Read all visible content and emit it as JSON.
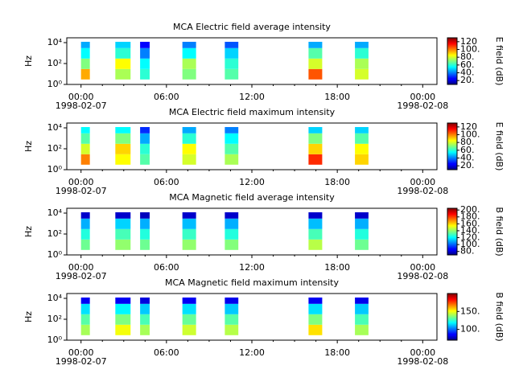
{
  "chart_data": [
    {
      "type": "heatmap",
      "title": "MCA  Electric field average intensity",
      "ylabel": "Hz",
      "colorbar_label": "E field (dB)",
      "yscale": "log",
      "ylim": [
        1,
        29000
      ],
      "yticks": [
        {
          "value": 1,
          "label": "10⁰"
        },
        {
          "value": 100,
          "label": "10²"
        },
        {
          "value": 10000,
          "label": "10⁴"
        }
      ],
      "xlim": [
        -1,
        25
      ],
      "xticks": [
        {
          "value": 0,
          "label": "00:00"
        },
        {
          "value": 6,
          "label": "06:00"
        },
        {
          "value": 12,
          "label": "12:00"
        },
        {
          "value": 18,
          "label": "18:00"
        },
        {
          "value": 24,
          "label": "00:00"
        }
      ],
      "xminorticks": [
        1.5,
        3,
        4.5,
        7.5,
        9,
        10.5,
        13.5,
        15,
        16.5,
        19.5,
        21,
        22.5
      ],
      "xdate_labels": [
        {
          "value": 0,
          "label": "1998-02-07"
        },
        {
          "value": 24,
          "label": "1998-02-08"
        }
      ],
      "clim": [
        10,
        130
      ],
      "cticks": [
        {
          "value": 20,
          "label": "20."
        },
        {
          "value": 40,
          "label": "40."
        },
        {
          "value": 60,
          "label": "60."
        },
        {
          "value": 80,
          "label": "80."
        },
        {
          "value": 100,
          "label": "100."
        },
        120
      ],
      "y_edges": [
        3,
        30,
        300,
        3000,
        12000
      ],
      "intervals": [
        [
          0,
          0.62
        ],
        [
          2.41,
          3.48
        ],
        [
          4.15,
          4.82
        ],
        [
          7.12,
          8.08
        ],
        [
          10.1,
          11.05
        ],
        [
          15.98,
          16.94
        ],
        [
          19.24,
          20.19
        ]
      ],
      "values": [
        [
          95,
          70,
          55,
          45
        ],
        [
          75,
          85,
          60,
          50
        ],
        [
          60,
          55,
          40,
          25
        ],
        [
          70,
          75,
          55,
          40
        ],
        [
          65,
          60,
          50,
          35
        ],
        [
          105,
          80,
          65,
          45
        ],
        [
          80,
          75,
          60,
          45
        ]
      ]
    },
    {
      "type": "heatmap",
      "title": "MCA  Electric field maximum intensity",
      "ylabel": "Hz",
      "colorbar_label": "E field (dB)",
      "yscale": "log",
      "ylim": [
        1,
        29000
      ],
      "yticks": [
        {
          "value": 1,
          "label": "10⁰"
        },
        {
          "value": 100,
          "label": "10²"
        },
        {
          "value": 10000,
          "label": "10⁴"
        }
      ],
      "xlim": [
        -1,
        25
      ],
      "xticks": [
        {
          "value": 0,
          "label": "00:00"
        },
        {
          "value": 6,
          "label": "06:00"
        },
        {
          "value": 12,
          "label": "12:00"
        },
        {
          "value": 18,
          "label": "18:00"
        },
        {
          "value": 24,
          "label": "00:00"
        }
      ],
      "xminorticks": [
        1.5,
        3,
        4.5,
        7.5,
        9,
        10.5,
        13.5,
        15,
        16.5,
        19.5,
        21,
        22.5
      ],
      "xdate_labels": [
        {
          "value": 0,
          "label": "1998-02-07"
        },
        {
          "value": 24,
          "label": "1998-02-08"
        }
      ],
      "clim": [
        10,
        130
      ],
      "cticks": [
        {
          "value": 20,
          "label": "20."
        },
        {
          "value": 40,
          "label": "40."
        },
        {
          "value": 60,
          "label": "60."
        },
        {
          "value": 80,
          "label": "80."
        },
        {
          "value": 100,
          "label": "100."
        },
        120
      ],
      "y_edges": [
        3,
        30,
        300,
        3000,
        12000
      ],
      "intervals": [
        [
          0,
          0.62
        ],
        [
          2.41,
          3.48
        ],
        [
          4.15,
          4.82
        ],
        [
          7.12,
          8.08
        ],
        [
          10.1,
          11.05
        ],
        [
          15.98,
          16.94
        ],
        [
          19.24,
          20.19
        ]
      ],
      "values": [
        [
          100,
          80,
          65,
          55
        ],
        [
          85,
          90,
          70,
          55
        ],
        [
          65,
          60,
          45,
          30
        ],
        [
          80,
          85,
          60,
          45
        ],
        [
          75,
          65,
          55,
          40
        ],
        [
          110,
          90,
          70,
          50
        ],
        [
          90,
          85,
          65,
          50
        ]
      ]
    },
    {
      "type": "heatmap",
      "title": "MCA  Magnetic field average intensity",
      "ylabel": "Hz",
      "colorbar_label": "B field (dB)",
      "yscale": "log",
      "ylim": [
        1,
        29000
      ],
      "yticks": [
        {
          "value": 1,
          "label": "10⁰"
        },
        {
          "value": 100,
          "label": "10²"
        },
        {
          "value": 10000,
          "label": "10⁴"
        }
      ],
      "xlim": [
        -1,
        25
      ],
      "xticks": [
        {
          "value": 0,
          "label": "00:00"
        },
        {
          "value": 6,
          "label": "06:00"
        },
        {
          "value": 12,
          "label": "12:00"
        },
        {
          "value": 18,
          "label": "18:00"
        },
        {
          "value": 24,
          "label": "00:00"
        }
      ],
      "xminorticks": [
        1.5,
        3,
        4.5,
        7.5,
        9,
        10.5,
        13.5,
        15,
        16.5,
        19.5,
        21,
        22.5
      ],
      "xdate_labels": [
        {
          "value": 0,
          "label": "1998-02-07"
        },
        {
          "value": 24,
          "label": "1998-02-08"
        }
      ],
      "clim": [
        70,
        205
      ],
      "cticks": [
        {
          "value": 80,
          "label": "80."
        },
        {
          "value": 100,
          "label": "100."
        },
        {
          "value": 120,
          "label": "120."
        },
        {
          "value": 140,
          "label": "140."
        },
        {
          "value": 160,
          "label": "160."
        },
        {
          "value": 180,
          "label": "180."
        },
        {
          "value": 200,
          "label": "200."
        }
      ],
      "y_edges": [
        3,
        30,
        300,
        3000,
        12000
      ],
      "intervals": [
        [
          0,
          0.62
        ],
        [
          2.41,
          3.48
        ],
        [
          4.15,
          4.82
        ],
        [
          7.12,
          8.08
        ],
        [
          10.1,
          11.05
        ],
        [
          15.98,
          16.94
        ],
        [
          19.24,
          20.19
        ]
      ],
      "values": [
        [
          135,
          125,
          110,
          80
        ],
        [
          140,
          130,
          115,
          80
        ],
        [
          135,
          125,
          110,
          78
        ],
        [
          140,
          128,
          112,
          80
        ],
        [
          138,
          125,
          110,
          80
        ],
        [
          145,
          130,
          112,
          80
        ],
        [
          135,
          125,
          110,
          80
        ]
      ]
    },
    {
      "type": "heatmap",
      "title": "MCA  Magnetic field maximum intensity",
      "ylabel": "Hz",
      "colorbar_label": "B field (dB)",
      "yscale": "log",
      "ylim": [
        1,
        29000
      ],
      "yticks": [
        {
          "value": 1,
          "label": "10⁰"
        },
        {
          "value": 100,
          "label": "10²"
        },
        {
          "value": 10000,
          "label": "10⁴"
        }
      ],
      "xlim": [
        -1,
        25
      ],
      "xticks": [
        {
          "value": 0,
          "label": "00:00"
        },
        {
          "value": 6,
          "label": "06:00"
        },
        {
          "value": 12,
          "label": "12:00"
        },
        {
          "value": 18,
          "label": "18:00"
        },
        {
          "value": 24,
          "label": "00:00"
        }
      ],
      "xminorticks": [
        1.5,
        3,
        4.5,
        7.5,
        9,
        10.5,
        13.5,
        15,
        16.5,
        19.5,
        21,
        22.5
      ],
      "xdate_labels": [
        {
          "value": 0,
          "label": "1998-02-07"
        },
        {
          "value": 24,
          "label": "1998-02-08"
        }
      ],
      "clim": [
        70,
        200
      ],
      "cticks": [
        {
          "value": 100,
          "label": "100."
        },
        {
          "value": 150,
          "label": "150."
        }
      ],
      "y_edges": [
        3,
        30,
        300,
        3000,
        12000
      ],
      "intervals": [
        [
          0,
          0.62
        ],
        [
          2.41,
          3.48
        ],
        [
          4.15,
          4.82
        ],
        [
          7.12,
          8.08
        ],
        [
          10.1,
          11.05
        ],
        [
          15.98,
          16.94
        ],
        [
          19.24,
          20.19
        ]
      ],
      "values": [
        [
          140,
          130,
          115,
          85
        ],
        [
          150,
          135,
          118,
          85
        ],
        [
          140,
          128,
          112,
          82
        ],
        [
          145,
          132,
          115,
          85
        ],
        [
          142,
          130,
          112,
          84
        ],
        [
          155,
          135,
          115,
          85
        ],
        [
          140,
          128,
          112,
          84
        ]
      ]
    }
  ]
}
